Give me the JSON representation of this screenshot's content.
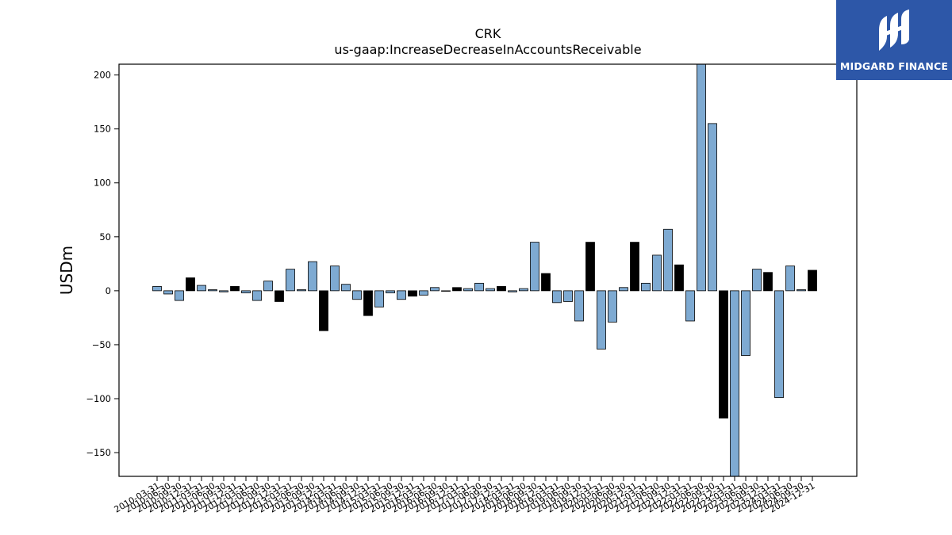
{
  "brand": {
    "name": "MIDGARD FINANCE",
    "bg_color": "#2d57a8",
    "logo_icon": "midgard-logo-icon"
  },
  "chart_data": {
    "type": "bar",
    "title": "CRK",
    "subtitle": "us-gaap:IncreaseDecreaseInAccountsReceivable",
    "xlabel": "",
    "ylabel": "USDm",
    "ylim": [
      -172,
      210
    ],
    "yticks": [
      -150,
      -100,
      -50,
      0,
      50,
      100,
      150,
      200
    ],
    "grid": false,
    "colors": {
      "quarter": "#7eaad2",
      "annual": "#000000",
      "edge": "#000000"
    },
    "categories": [
      "2010-03-31",
      "2010-06-30",
      "2010-09-30",
      "2010-12-31",
      "2011-03-31",
      "2011-06-30",
      "2011-09-30",
      "2011-12-31",
      "2012-03-31",
      "2012-06-30",
      "2012-09-30",
      "2012-12-31",
      "2013-03-31",
      "2013-06-30",
      "2013-09-30",
      "2013-12-31",
      "2014-03-31",
      "2014-06-30",
      "2014-09-30",
      "2014-12-31",
      "2015-03-31",
      "2015-06-30",
      "2015-09-30",
      "2015-12-31",
      "2016-03-31",
      "2016-06-30",
      "2016-09-30",
      "2016-12-31",
      "2017-03-31",
      "2017-06-30",
      "2017-09-30",
      "2017-12-31",
      "2018-03-31",
      "2018-06-30",
      "2018-09-30",
      "2018-12-31",
      "2019-03-31",
      "2019-06-30",
      "2019-09-30",
      "2019-12-31",
      "2020-03-31",
      "2020-06-30",
      "2020-09-30",
      "2020-12-31",
      "2021-03-31",
      "2021-06-30",
      "2021-09-30",
      "2021-12-31",
      "2022-03-31",
      "2022-06-30",
      "2022-09-30",
      "2022-12-31",
      "2023-03-31",
      "2023-06-30",
      "2023-09-30",
      "2023-12-31",
      "2024-03-31",
      "2024-06-30",
      "2024-09-30",
      "2024-12-31"
    ],
    "values": [
      4,
      -3,
      -9,
      12,
      5,
      1,
      -1,
      4,
      -2,
      -9,
      9,
      -10,
      20,
      1,
      27,
      -37,
      23,
      6,
      -8,
      -23,
      -15,
      -2,
      -8,
      -5,
      -4,
      3,
      0,
      3,
      2,
      7,
      2,
      4,
      -1,
      2,
      45,
      16,
      -11,
      -10,
      -28,
      45,
      -54,
      -29,
      3,
      45,
      7,
      33,
      57,
      24,
      -28,
      210,
      155,
      -118,
      -172,
      -60,
      20,
      17,
      -99,
      23,
      1,
      19
    ],
    "series_kind": [
      "q",
      "q",
      "q",
      "a",
      "q",
      "q",
      "q",
      "a",
      "q",
      "q",
      "q",
      "a",
      "q",
      "q",
      "q",
      "a",
      "q",
      "q",
      "q",
      "a",
      "q",
      "q",
      "q",
      "a",
      "q",
      "q",
      "q",
      "a",
      "q",
      "q",
      "q",
      "a",
      "q",
      "q",
      "q",
      "a",
      "q",
      "q",
      "q",
      "a",
      "q",
      "q",
      "q",
      "a",
      "q",
      "q",
      "q",
      "a",
      "q",
      "q",
      "q",
      "a",
      "q",
      "q",
      "q",
      "a",
      "q",
      "q",
      "q",
      "a"
    ]
  }
}
